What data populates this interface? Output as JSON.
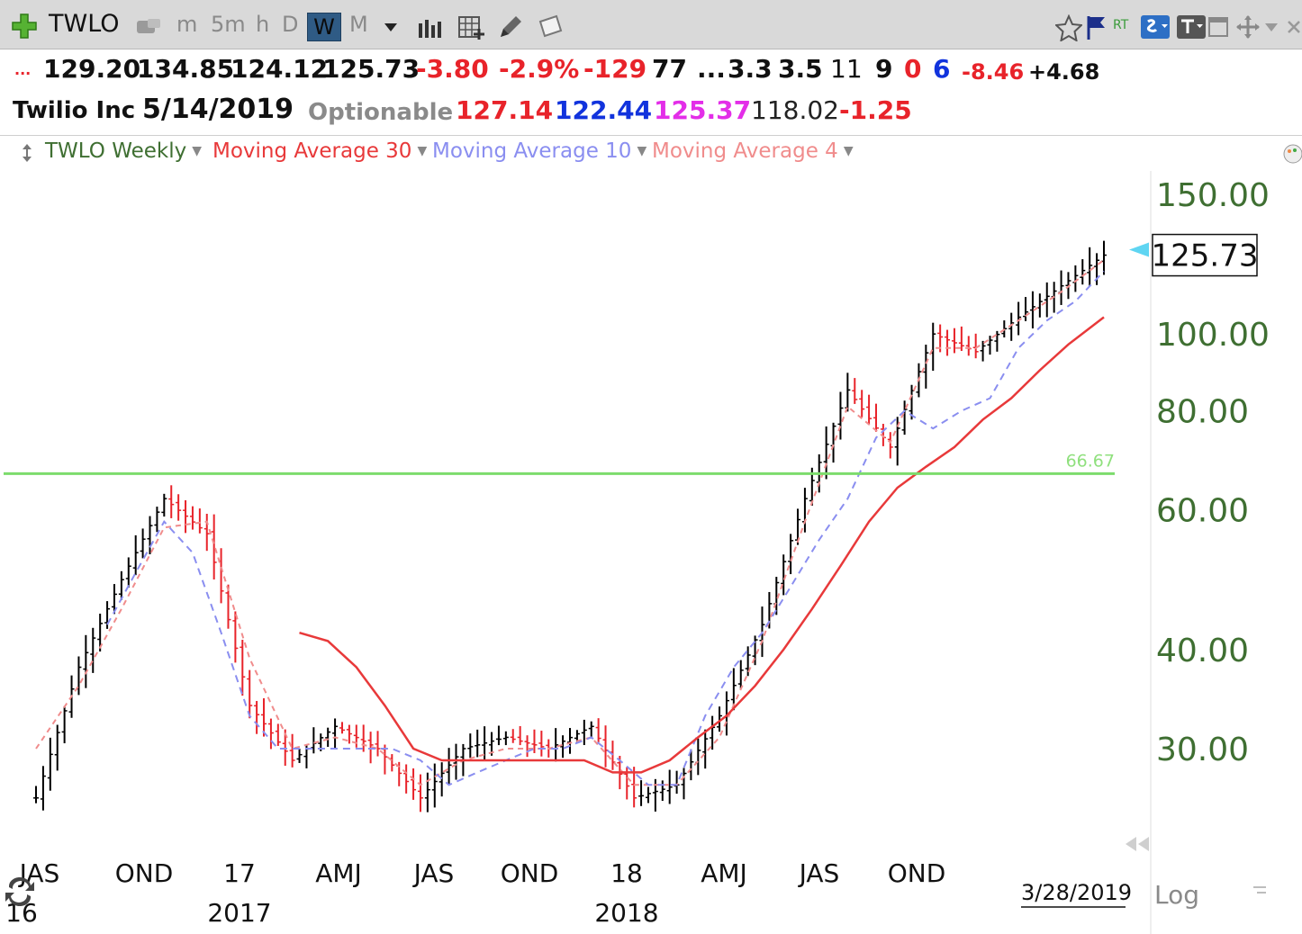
{
  "toolbar": {
    "symbol": "TWLO",
    "intervals": [
      "m",
      "5m",
      "h",
      "D",
      "W",
      "M"
    ],
    "active_interval": "W",
    "rt_label": "RT"
  },
  "quote": {
    "prefix": "...",
    "open": "129.20",
    "high": "134.85",
    "low": "124.12",
    "close": "125.73",
    "change": "-3.80",
    "change_pct": "-2.9%",
    "v1": "-129",
    "v2": "77",
    "ellipsis": "...",
    "v3": "3.3",
    "v4": "3.5",
    "v5": "11",
    "v6": "9",
    "v7": "0",
    "v8": "6",
    "v9": "-8.46",
    "v10": "+4.68"
  },
  "info": {
    "company": "Twilio Inc",
    "date": "5/14/2019",
    "status": "Optionable",
    "p1": "127.14",
    "p2": "122.44",
    "p3": "125.37",
    "p4": "118.02",
    "p5": "-1.25"
  },
  "legend": {
    "series_main": "TWLO Weekly",
    "ma30": "Moving Average 30",
    "ma10": "Moving Average 10",
    "ma4": "Moving Average 4"
  },
  "colors": {
    "up_bar": "#000000",
    "down_bar": "#e8232a",
    "ma30": "#e8393a",
    "ma10": "#8a8ef0",
    "ma4": "#f08c8c",
    "hline": "#7cdc6c",
    "price_axis": "#3f6f32",
    "legend_main": "#3f6f32",
    "marker": "#5fd5f2"
  },
  "chart_data": {
    "type": "line",
    "scale": "log",
    "yticks": [
      150,
      100,
      80,
      60,
      40,
      30
    ],
    "ytick_labels": [
      "150.00",
      "100.00",
      "80.00",
      "60.00",
      "40.00",
      "30.00"
    ],
    "ylim": [
      24,
      160
    ],
    "x_tick_labels": [
      "JAS",
      "OND",
      "17",
      "AMJ",
      "JAS",
      "OND",
      "18",
      "AMJ",
      "JAS",
      "OND"
    ],
    "x_year_labels": [
      "16",
      "2017",
      "2018"
    ],
    "last_price": "125.73",
    "horizontal_line": {
      "value": 66.67,
      "label": "66.67"
    },
    "date_label": "3/28/2019",
    "log_label": "Log",
    "series": [
      {
        "name": "TWLO Weekly",
        "type": "ohlc",
        "x": [
          0,
          6,
          12,
          18,
          24,
          30,
          36,
          42,
          48,
          54,
          60,
          66,
          72,
          78,
          84,
          90,
          96,
          102,
          108,
          114,
          120,
          126,
          132,
          138,
          144,
          150
        ],
        "values": [
          26,
          38,
          49,
          62,
          56,
          34,
          29,
          32,
          30,
          26,
          30,
          31,
          30,
          32,
          26,
          27,
          33,
          43,
          62,
          85,
          72,
          100,
          95,
          105,
          115,
          125.73
        ]
      },
      {
        "name": "Moving Average 4",
        "x": [
          0,
          6,
          12,
          18,
          24,
          30,
          36,
          42,
          48,
          54,
          60,
          66,
          72,
          78,
          84,
          90,
          96,
          102,
          108,
          114,
          120,
          126,
          132,
          138,
          144,
          150
        ],
        "values": [
          30,
          36,
          45,
          57,
          58,
          39,
          30,
          31,
          30,
          27,
          29,
          30,
          30,
          31,
          27,
          27,
          31,
          41,
          58,
          81,
          73,
          96,
          96,
          104,
          113,
          124
        ]
      },
      {
        "name": "Moving Average 10",
        "x": [
          10,
          14,
          18,
          22,
          26,
          30,
          34,
          38,
          42,
          46,
          50,
          54,
          58,
          62,
          66,
          70,
          74,
          78,
          82,
          86,
          90,
          94,
          98,
          102,
          106,
          110,
          114,
          118,
          122,
          126,
          130,
          134,
          138,
          142,
          146,
          150
        ],
        "values": [
          43,
          50,
          58,
          53,
          42,
          33,
          30,
          30,
          30,
          30,
          30,
          29,
          27,
          28,
          29,
          30,
          30,
          31,
          29,
          27,
          27,
          33,
          38,
          42,
          48,
          55,
          62,
          74,
          80,
          76,
          80,
          83,
          96,
          104,
          110,
          120
        ]
      },
      {
        "name": "Moving Average 30",
        "x": [
          37,
          41,
          45,
          49,
          53,
          57,
          61,
          65,
          69,
          73,
          77,
          81,
          85,
          89,
          93,
          97,
          101,
          105,
          109,
          113,
          117,
          121,
          125,
          129,
          133,
          137,
          141,
          145,
          150
        ],
        "values": [
          42,
          41,
          38,
          34,
          30,
          29,
          29,
          29,
          29,
          29,
          29,
          28,
          28,
          29,
          31,
          33,
          36,
          40,
          45,
          51,
          58,
          64,
          68,
          72,
          78,
          83,
          90,
          97,
          105
        ]
      }
    ]
  }
}
